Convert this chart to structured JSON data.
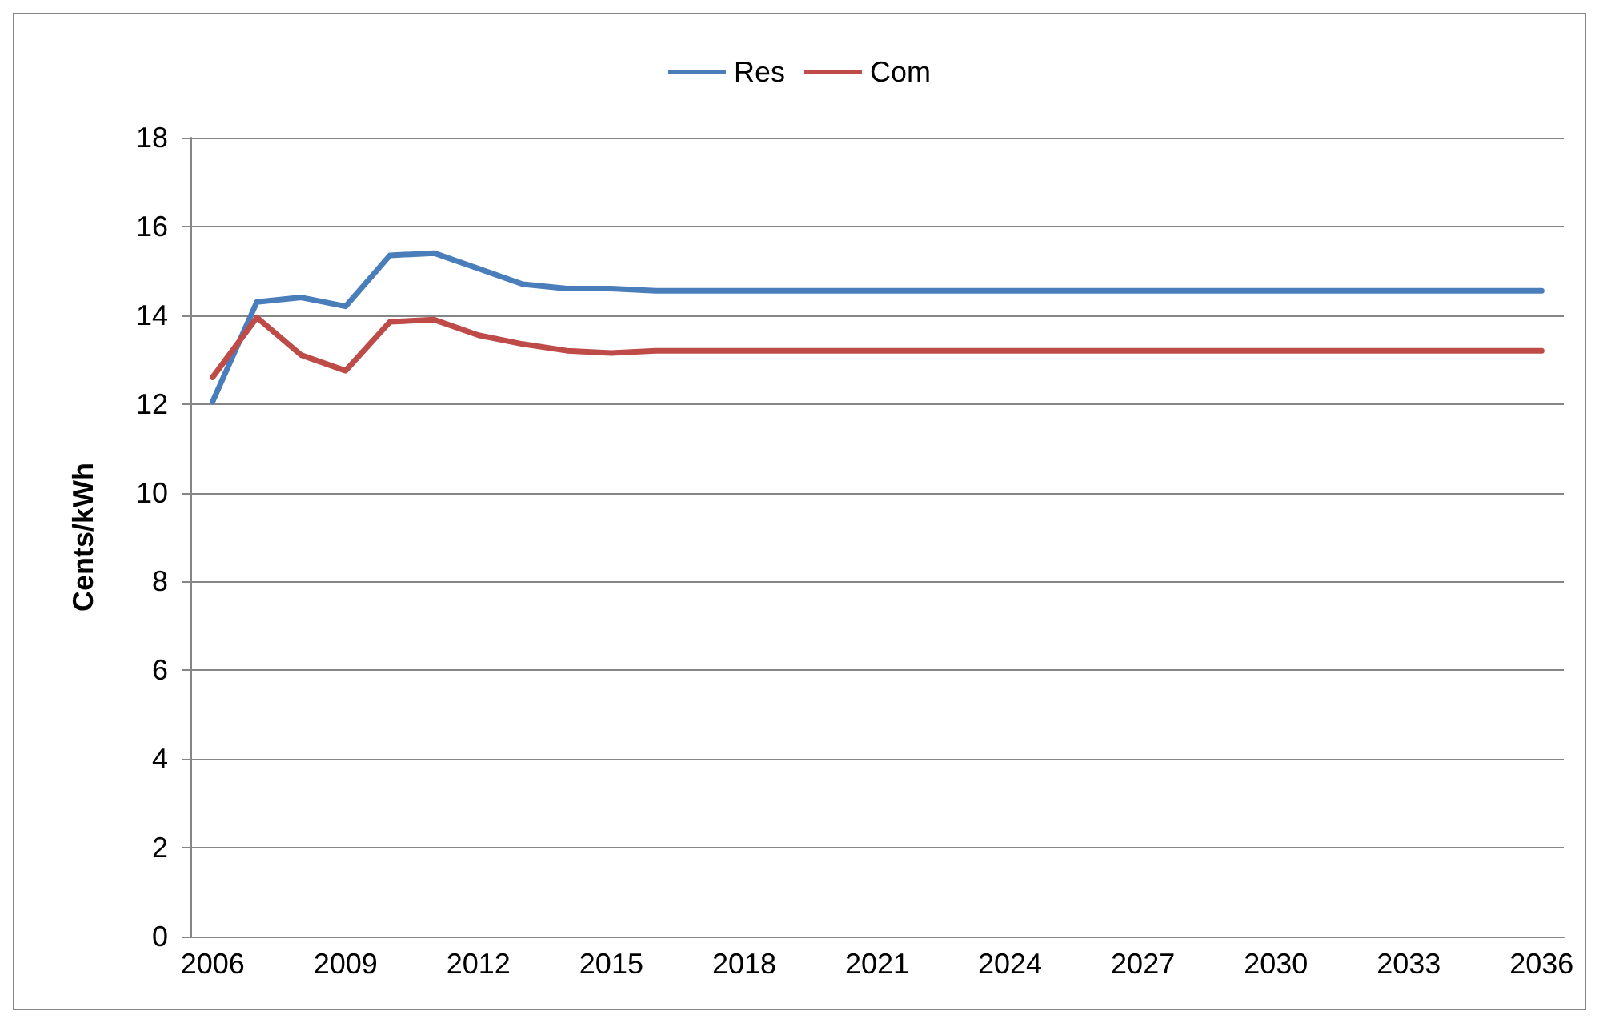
{
  "chart_data": {
    "type": "line",
    "ylabel": "Cents/kWh",
    "categories": [
      "2006",
      null,
      null,
      "2009",
      null,
      null,
      "2012",
      null,
      null,
      "2015",
      null,
      null,
      "2018",
      null,
      null,
      "2021",
      null,
      null,
      "2024",
      null,
      null,
      "2027",
      null,
      null,
      "2030",
      null,
      null,
      "2033",
      null,
      null,
      "2036"
    ],
    "series": [
      {
        "name": "Res",
        "color": "#4a7ebb",
        "values": [
          12.05,
          14.3,
          14.4,
          14.2,
          15.35,
          15.4,
          15.05,
          14.7,
          14.6,
          14.6,
          14.55,
          14.55,
          14.55,
          14.55,
          14.55,
          14.55,
          14.55,
          14.55,
          14.55,
          14.55,
          14.55,
          14.55,
          14.55,
          14.55,
          14.55,
          14.55,
          14.55,
          14.55,
          14.55,
          14.55,
          14.55
        ]
      },
      {
        "name": "Com",
        "color": "#be4b48",
        "values": [
          12.6,
          13.95,
          13.1,
          12.75,
          13.85,
          13.9,
          13.55,
          13.35,
          13.2,
          13.15,
          13.2,
          13.2,
          13.2,
          13.2,
          13.2,
          13.2,
          13.2,
          13.2,
          13.2,
          13.2,
          13.2,
          13.2,
          13.2,
          13.2,
          13.2,
          13.2,
          13.2,
          13.2,
          13.2,
          13.2,
          13.2
        ]
      }
    ],
    "ylim": [
      0,
      18
    ],
    "yticks": [
      0,
      2,
      4,
      6,
      8,
      10,
      12,
      14,
      16,
      18
    ],
    "grid": "y",
    "legend": "top",
    "marker": "none",
    "line_style": "solid"
  }
}
